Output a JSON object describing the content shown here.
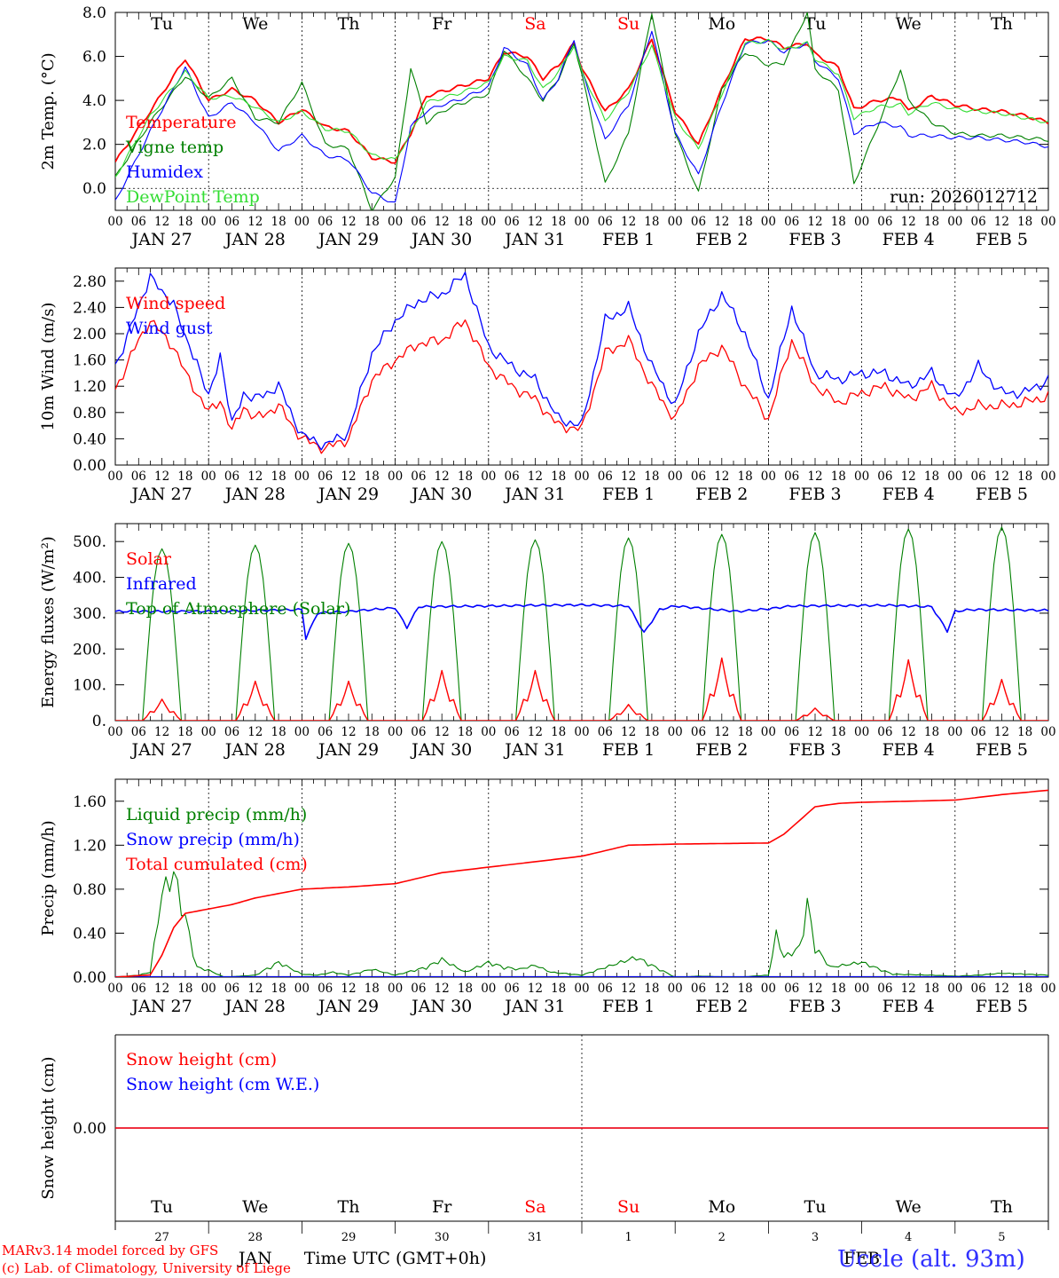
{
  "colors": {
    "red": "#ff0000",
    "blue": "#0000ff",
    "green": "#008000",
    "lgreen": "#33dd33",
    "axis": "#000000",
    "snowblue": "#3030ff"
  },
  "credits": {
    "line1": "MARv3.14 model forced by GFS",
    "line2": "(c) Lab. of Climatology, University of Liege"
  },
  "station": "Uccle (alt. 93m)",
  "x_axis": {
    "hour_ticks": [
      "00",
      "06",
      "12",
      "18"
    ],
    "final_tick": "00",
    "dates": [
      "JAN 27",
      "JAN 28",
      "JAN 29",
      "JAN 30",
      "JAN 31",
      "FEB  1",
      "FEB  2",
      "FEB  3",
      "FEB  4",
      "FEB  5"
    ],
    "weekdays": [
      "Tu",
      "We",
      "Th",
      "Fr",
      "Sa",
      "Su",
      "Mo",
      "Tu",
      "We",
      "Th"
    ],
    "weekday_colors": [
      "#000000",
      "#000000",
      "#000000",
      "#000000",
      "#ff0000",
      "#ff0000",
      "#000000",
      "#000000",
      "#000000",
      "#000000"
    ],
    "day_numbers": [
      "27",
      "28",
      "29",
      "30",
      "31",
      "1",
      "2",
      "3",
      "4",
      "5"
    ],
    "month_jan": "JAN",
    "month_feb": "FEB",
    "time_label": "Time UTC (GMT+0h)"
  },
  "chart_data": [
    {
      "type": "line",
      "title": "",
      "ylabel": "2m Temp. (°C)",
      "ylim": [
        -1.0,
        8.0
      ],
      "yticks": [
        "0.0",
        "2.0",
        "4.0",
        "6.0",
        "8.0"
      ],
      "ytick_values": [
        0,
        2,
        4,
        6,
        8
      ],
      "annotation": "run: 2026012712",
      "x_hours_knots": [
        0,
        9,
        18,
        24,
        30,
        36,
        42,
        48,
        54,
        60,
        66,
        72,
        76,
        80,
        84,
        88,
        96,
        100,
        106,
        110,
        114,
        118,
        120,
        126,
        132,
        138,
        144,
        150,
        156,
        162,
        168,
        172,
        178,
        180,
        186,
        190,
        196,
        202,
        204,
        210,
        216,
        222,
        228,
        234,
        240
      ],
      "series": [
        {
          "name": "Temperature",
          "color": "#ff0000",
          "values": [
            1.2,
            3.5,
            5.9,
            4.0,
            4.5,
            4.0,
            3.0,
            3.6,
            2.8,
            2.6,
            1.4,
            1.2,
            2.5,
            4.2,
            4.4,
            4.6,
            5.0,
            6.2,
            6.0,
            5.0,
            5.6,
            6.6,
            5.5,
            3.5,
            4.5,
            6.8,
            3.5,
            2.0,
            4.5,
            6.8,
            6.8,
            6.4,
            6.6,
            6.1,
            5.5,
            3.6,
            4.0,
            4.1,
            3.5,
            4.2,
            3.8,
            3.6,
            3.5,
            3.3,
            3.0
          ]
        },
        {
          "name": "Vigne temp",
          "color": "#008000",
          "values": [
            0.5,
            3.0,
            5.1,
            4.1,
            5.0,
            3.2,
            3.0,
            4.8,
            2.0,
            1.8,
            -1.0,
            0.5,
            5.5,
            3.0,
            3.5,
            3.8,
            4.3,
            6.3,
            5.0,
            4.0,
            5.0,
            6.6,
            5.2,
            0.2,
            2.5,
            8.0,
            2.5,
            -0.2,
            4.5,
            6.2,
            5.6,
            5.7,
            8.0,
            5.4,
            4.5,
            0.2,
            2.8,
            5.4,
            4.0,
            3.0,
            2.5,
            2.4,
            2.4,
            2.3,
            2.2
          ]
        },
        {
          "name": "Humidex",
          "color": "#0000ff",
          "values": [
            -0.6,
            2.6,
            5.5,
            3.2,
            3.9,
            3.0,
            1.7,
            2.4,
            1.5,
            1.3,
            -0.2,
            -0.7,
            2.8,
            3.5,
            3.8,
            4.0,
            4.6,
            6.4,
            5.6,
            4.0,
            5.0,
            6.8,
            5.3,
            2.2,
            3.8,
            7.2,
            2.5,
            0.6,
            3.8,
            6.6,
            6.7,
            6.2,
            6.6,
            5.8,
            5.0,
            2.5,
            3.0,
            2.8,
            2.4,
            2.4,
            2.3,
            2.3,
            2.2,
            2.1,
            1.9
          ]
        },
        {
          "name": "DewPoint Temp",
          "color": "#33dd33",
          "values": [
            0.5,
            3.3,
            5.3,
            4.1,
            4.2,
            3.7,
            3.0,
            3.5,
            2.7,
            2.6,
            1.5,
            1.3,
            2.5,
            3.9,
            4.1,
            4.3,
            4.8,
            6.0,
            5.8,
            4.5,
            5.3,
            6.5,
            5.3,
            3.1,
            4.4,
            6.5,
            3.2,
            1.8,
            4.3,
            6.6,
            6.7,
            6.3,
            6.6,
            5.9,
            5.2,
            3.2,
            3.7,
            3.8,
            3.4,
            3.9,
            3.6,
            3.5,
            3.4,
            3.2,
            3.0
          ]
        }
      ]
    },
    {
      "type": "line",
      "ylabel": "10m Wind (m/s)",
      "ylim": [
        0,
        3.0
      ],
      "yticks": [
        "0.00",
        "0.40",
        "0.80",
        "1.20",
        "1.60",
        "2.00",
        "2.40",
        "2.80"
      ],
      "ytick_values": [
        0,
        0.4,
        0.8,
        1.2,
        1.6,
        2.0,
        2.4,
        2.8
      ],
      "x_hours_knots": [
        0,
        6,
        9,
        12,
        15,
        18,
        21,
        24,
        27,
        30,
        33,
        36,
        42,
        48,
        54,
        60,
        66,
        72,
        78,
        84,
        90,
        96,
        102,
        108,
        114,
        120,
        126,
        132,
        138,
        144,
        150,
        156,
        162,
        168,
        174,
        180,
        186,
        192,
        198,
        204,
        210,
        216,
        222,
        228,
        234,
        240
      ],
      "series": [
        {
          "name": "Wind speed",
          "color": "#ff0000",
          "values": [
            1.15,
            1.9,
            2.2,
            2.0,
            1.8,
            1.4,
            1.1,
            0.8,
            1.0,
            0.5,
            0.9,
            0.7,
            0.9,
            0.4,
            0.25,
            0.4,
            1.3,
            1.6,
            1.85,
            1.9,
            2.2,
            1.5,
            1.2,
            1.0,
            0.6,
            0.55,
            1.7,
            1.9,
            1.2,
            0.7,
            1.5,
            1.8,
            1.2,
            0.7,
            1.9,
            1.2,
            0.95,
            1.1,
            1.2,
            1.0,
            1.2,
            0.8,
            0.9,
            0.9,
            0.95,
            1.05
          ]
        },
        {
          "name": "Wind gust",
          "color": "#0000ff",
          "values": [
            1.5,
            2.4,
            2.9,
            2.6,
            2.5,
            1.9,
            1.6,
            1.0,
            1.7,
            0.6,
            1.1,
            1.0,
            1.2,
            0.45,
            0.3,
            0.5,
            1.7,
            2.2,
            2.5,
            2.6,
            2.9,
            1.8,
            1.5,
            1.3,
            0.7,
            0.6,
            2.2,
            2.4,
            1.5,
            0.9,
            2.0,
            2.6,
            2.0,
            1.0,
            2.4,
            1.4,
            1.3,
            1.4,
            1.4,
            1.2,
            1.4,
            1.0,
            1.5,
            1.1,
            1.1,
            1.3
          ]
        }
      ]
    },
    {
      "type": "line",
      "ylabel": "Energy fluxes (W/m²)",
      "ylim": [
        0,
        550
      ],
      "yticks": [
        "0.",
        "100.",
        "200.",
        "300.",
        "400.",
        "500."
      ],
      "ytick_values": [
        0,
        100,
        200,
        300,
        400,
        500
      ],
      "solar_day_peaks": [
        60,
        110,
        110,
        140,
        140,
        45,
        175,
        35,
        170,
        115
      ],
      "toa_day_peaks": [
        480,
        490,
        495,
        500,
        505,
        510,
        520,
        525,
        535,
        540
      ],
      "infrared_knots_x": [
        0,
        24,
        48,
        49,
        52,
        60,
        72,
        75,
        78,
        96,
        108,
        120,
        132,
        136,
        140,
        144,
        160,
        168,
        174,
        200,
        204,
        210,
        214,
        216,
        220,
        240
      ],
      "infrared_knots_y": [
        305,
        305,
        310,
        230,
        300,
        305,
        315,
        260,
        318,
        320,
        322,
        323,
        320,
        245,
        310,
        320,
        305,
        312,
        320,
        322,
        320,
        318,
        250,
        305,
        310,
        308
      ],
      "series": [
        {
          "name": "Solar",
          "color": "#ff0000"
        },
        {
          "name": "Infrared",
          "color": "#0000ff"
        },
        {
          "name": "Top of Atmosphere (Solar)",
          "color": "#008000"
        }
      ]
    },
    {
      "type": "line",
      "ylabel": "Precip (mm/h)",
      "ylim": [
        0,
        1.8
      ],
      "yticks": [
        "0.00",
        "0.40",
        "0.80",
        "1.20",
        "1.60"
      ],
      "ytick_values": [
        0,
        0.4,
        0.8,
        1.2,
        1.6
      ],
      "liquid_knots_x": [
        0,
        6,
        9,
        12,
        15,
        18,
        21,
        24,
        28,
        36,
        42,
        48,
        52,
        56,
        60,
        66,
        72,
        80,
        84,
        90,
        96,
        100,
        104,
        108,
        112,
        120,
        130,
        134,
        138,
        144,
        150,
        160,
        168,
        170,
        172,
        176,
        178,
        180,
        184,
        192,
        200,
        210,
        216,
        222,
        228,
        240
      ],
      "liquid_knots_y": [
        0,
        0.02,
        0.05,
        0.85,
        1.05,
        0.6,
        0.1,
        0.07,
        0,
        0.02,
        0.15,
        0.03,
        0.02,
        0.05,
        0.02,
        0.08,
        0.02,
        0.1,
        0.18,
        0.05,
        0.15,
        0.1,
        0.08,
        0.12,
        0.05,
        0.02,
        0.15,
        0.2,
        0.12,
        0,
        0.01,
        0,
        0.02,
        0.43,
        0.2,
        0.3,
        0.75,
        0.3,
        0.1,
        0.15,
        0.03,
        0.02,
        0.01,
        0.02,
        0.04,
        0.02
      ],
      "total_knots_x": [
        0,
        9,
        12,
        15,
        18,
        24,
        30,
        36,
        48,
        60,
        72,
        84,
        96,
        108,
        120,
        132,
        144,
        168,
        172,
        180,
        186,
        192,
        204,
        216,
        228,
        240
      ],
      "total_knots_y": [
        0,
        0.02,
        0.2,
        0.45,
        0.58,
        0.62,
        0.66,
        0.72,
        0.8,
        0.82,
        0.85,
        0.95,
        1.0,
        1.05,
        1.1,
        1.2,
        1.21,
        1.22,
        1.3,
        1.55,
        1.58,
        1.59,
        1.6,
        1.61,
        1.66,
        1.7
      ],
      "series": [
        {
          "name": "Liquid precip (mm/h)",
          "color": "#008000"
        },
        {
          "name": "Snow precip (mm/h)",
          "color": "#0000ff"
        },
        {
          "name": "Total cumulated (cm)",
          "color": "#ff0000"
        }
      ]
    },
    {
      "type": "line",
      "ylabel": "Snow height (cm)",
      "ylim": [
        -1,
        1
      ],
      "yticks": [
        "0.00"
      ],
      "ytick_values": [
        0
      ],
      "series": [
        {
          "name": "Snow height (cm)",
          "color": "#ff0000",
          "value": 0.0
        },
        {
          "name": "Snow height (cm W.E.)",
          "color": "#0000ff",
          "value": 0.0
        }
      ]
    }
  ]
}
